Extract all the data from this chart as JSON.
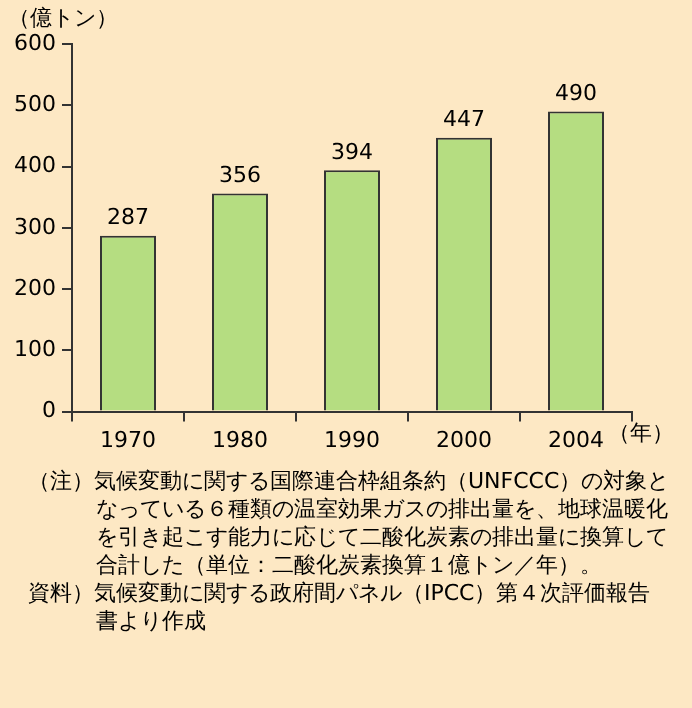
{
  "chart_data": {
    "type": "bar",
    "categories": [
      "1970",
      "1980",
      "1990",
      "2000",
      "2004"
    ],
    "values": [
      287,
      356,
      394,
      447,
      490
    ],
    "color": "#b5dd81",
    "ylabel": "（億トン）",
    "xlabel": "（年）",
    "ylim": [
      0,
      600
    ],
    "yticks": [
      0,
      100,
      200,
      300,
      400,
      500,
      600
    ],
    "grid": false,
    "data_labels": true,
    "annotations": [
      "（注）気候変動に関する国際連合枠組条約（UNFCCC）の対象となっている６種類の温室効果ガスの排出量を、地球温暖化を引き起こす能力に応じて二酸化炭素の排出量に換算して合計した（単位：二酸化炭素換算１億トン／年）。",
      "資料）気候変動に関する政府間パネル（IPCC）第４次評価報告書より作成"
    ]
  }
}
